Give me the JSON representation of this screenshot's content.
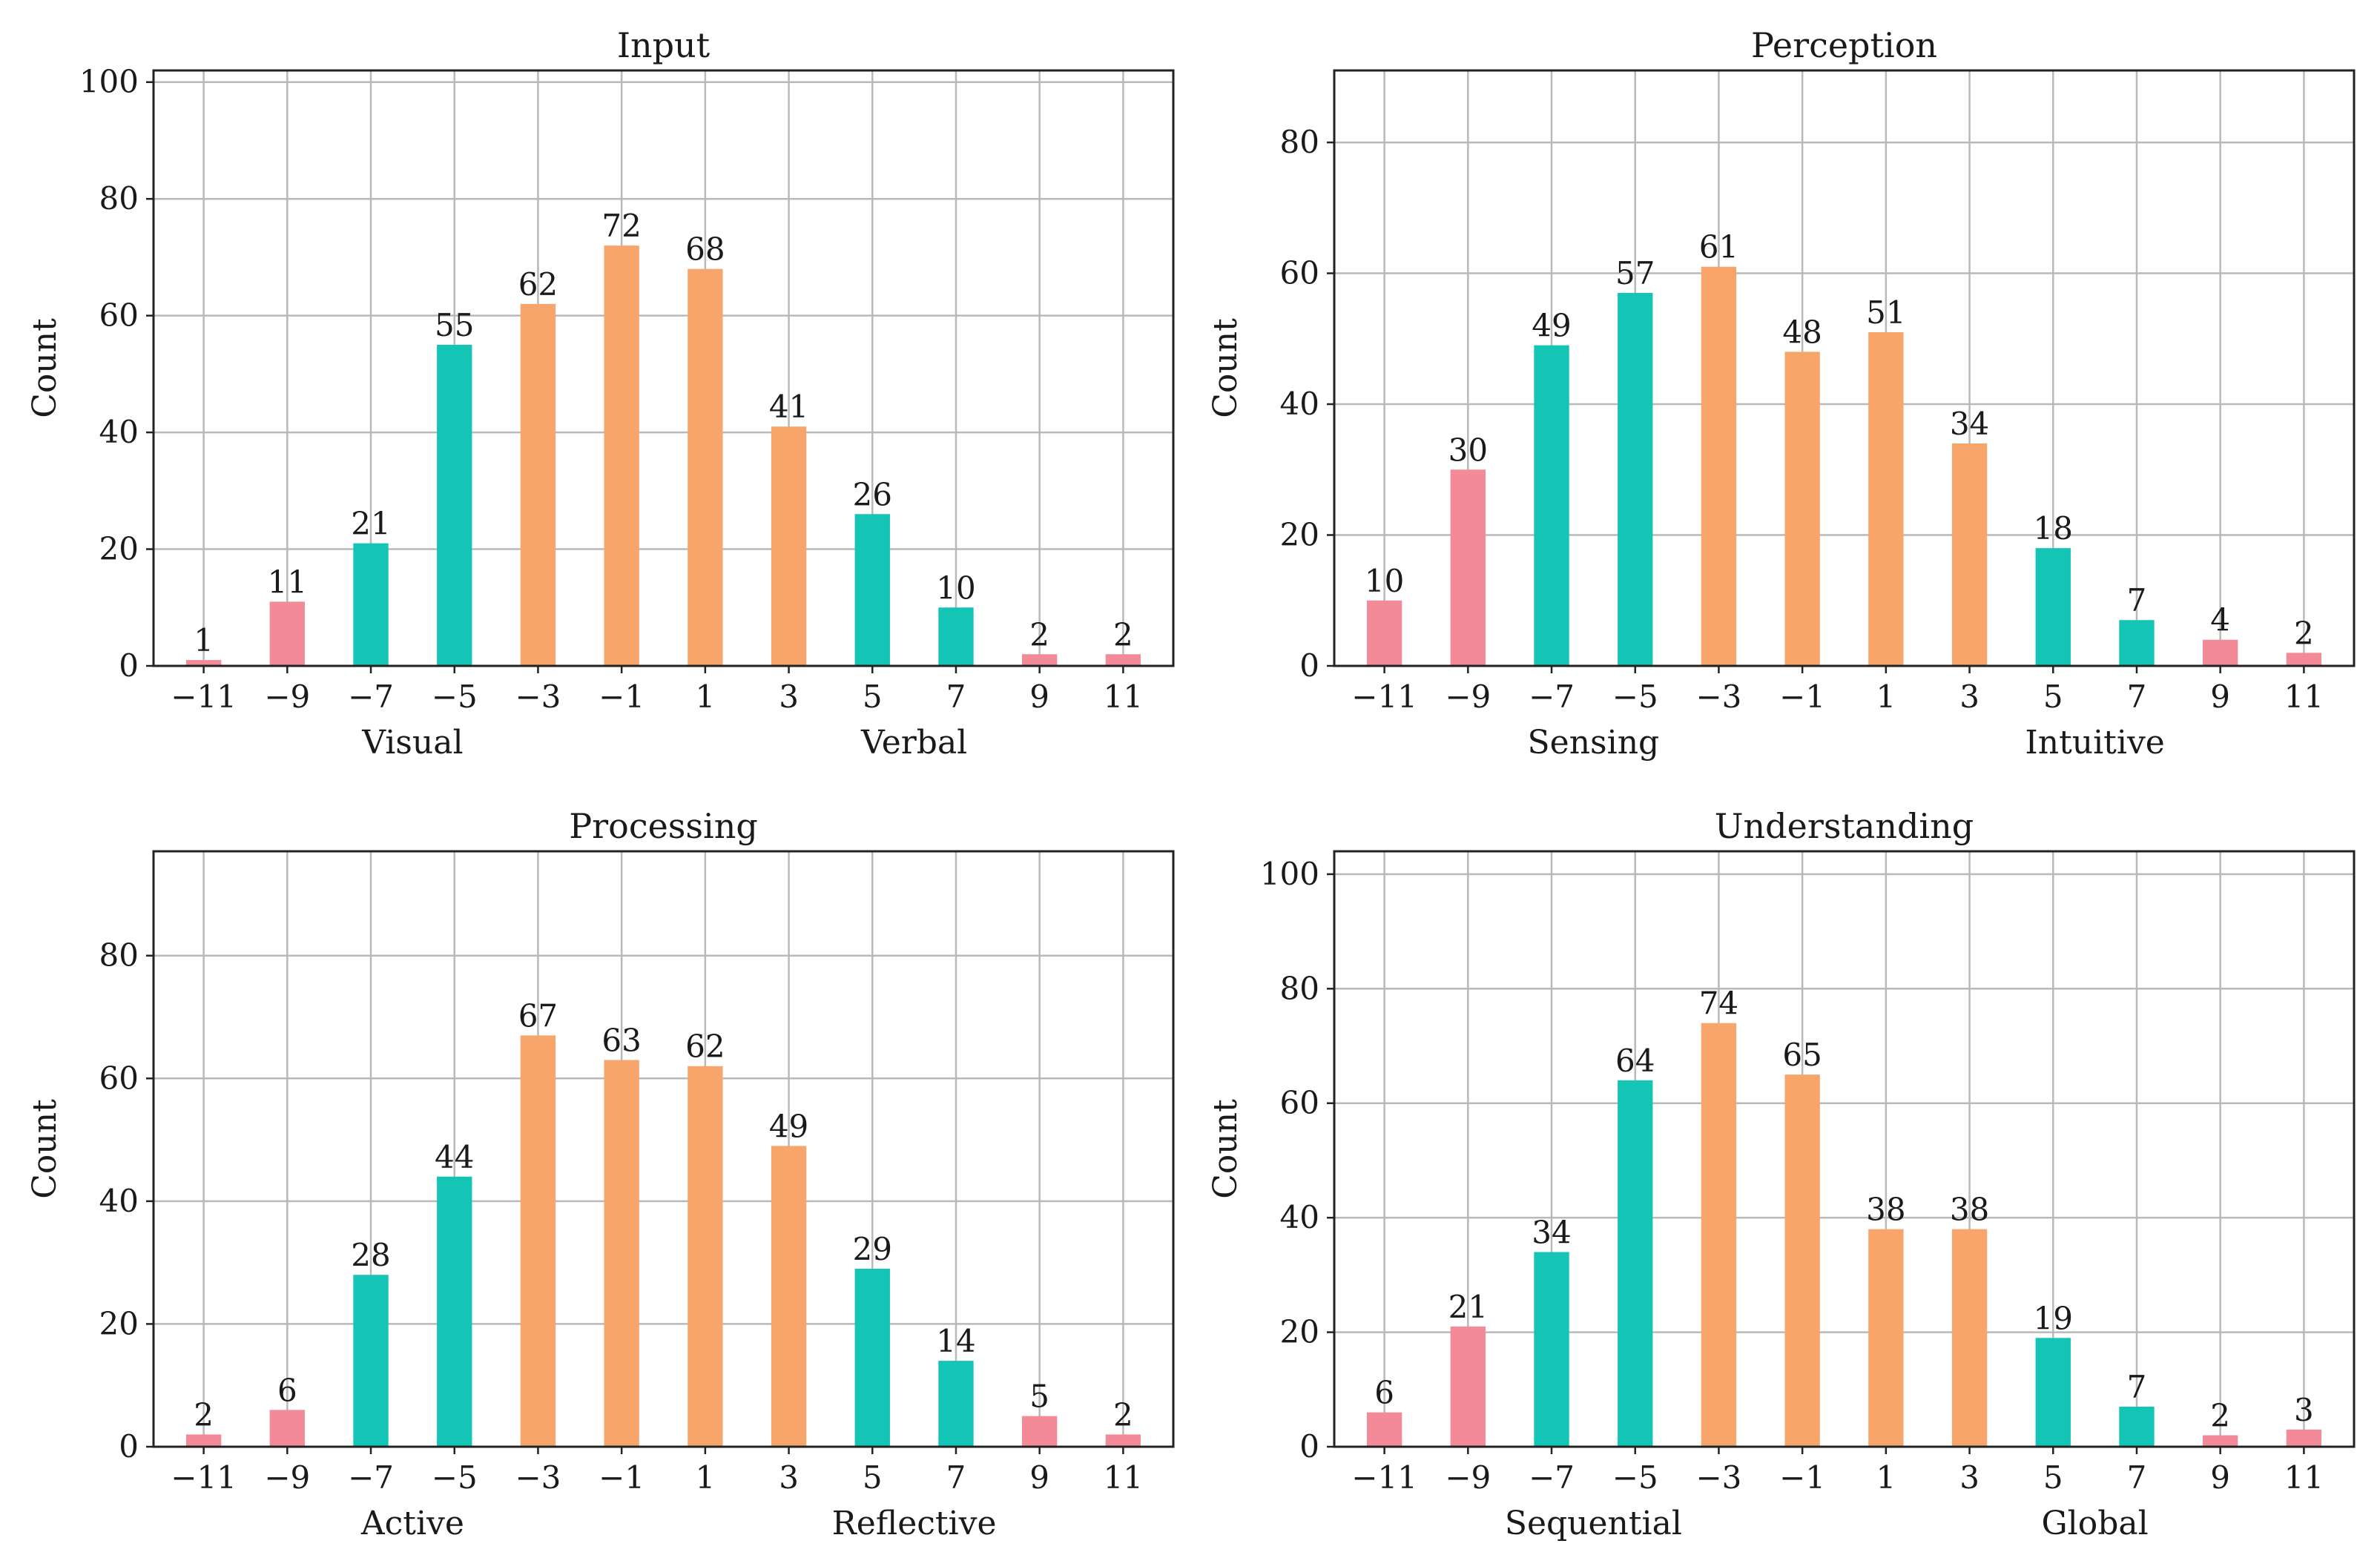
{
  "colors": {
    "pink": "#f28a97",
    "teal": "#14c4b4",
    "orange": "#f7a56a"
  },
  "chart_data": [
    {
      "type": "bar",
      "title": "Input",
      "ylabel": "Count",
      "xlabel_left": "Visual",
      "xlabel_right": "Verbal",
      "categories": [
        "−11",
        "−9",
        "−7",
        "−5",
        "−3",
        "−1",
        "1",
        "3",
        "5",
        "7",
        "9",
        "11"
      ],
      "x": [
        -11,
        -9,
        -7,
        -5,
        -3,
        -1,
        1,
        3,
        5,
        7,
        9,
        11
      ],
      "values": [
        1,
        11,
        21,
        55,
        62,
        72,
        68,
        41,
        26,
        10,
        2,
        2
      ],
      "bar_colors": [
        "pink",
        "pink",
        "teal",
        "teal",
        "orange",
        "orange",
        "orange",
        "orange",
        "teal",
        "teal",
        "pink",
        "pink"
      ],
      "yticks": [
        0,
        20,
        40,
        60,
        80,
        100
      ],
      "ylim": [
        0,
        102
      ],
      "grid": true
    },
    {
      "type": "bar",
      "title": "Perception",
      "ylabel": "Count",
      "xlabel_left": "Sensing",
      "xlabel_right": "Intuitive",
      "categories": [
        "−11",
        "−9",
        "−7",
        "−5",
        "−3",
        "−1",
        "1",
        "3",
        "5",
        "7",
        "9",
        "11"
      ],
      "x": [
        -11,
        -9,
        -7,
        -5,
        -3,
        -1,
        1,
        3,
        5,
        7,
        9,
        11
      ],
      "values": [
        10,
        30,
        49,
        57,
        61,
        48,
        51,
        34,
        18,
        7,
        4,
        2
      ],
      "bar_colors": [
        "pink",
        "pink",
        "teal",
        "teal",
        "orange",
        "orange",
        "orange",
        "orange",
        "teal",
        "teal",
        "pink",
        "pink"
      ],
      "yticks": [
        0,
        20,
        40,
        60,
        80
      ],
      "ylim": [
        0,
        91
      ],
      "grid": true
    },
    {
      "type": "bar",
      "title": "Processing",
      "ylabel": "Count",
      "xlabel_left": "Active",
      "xlabel_right": "Reflective",
      "categories": [
        "−11",
        "−9",
        "−7",
        "−5",
        "−3",
        "−1",
        "1",
        "3",
        "5",
        "7",
        "9",
        "11"
      ],
      "x": [
        -11,
        -9,
        -7,
        -5,
        -3,
        -1,
        1,
        3,
        5,
        7,
        9,
        11
      ],
      "values": [
        2,
        6,
        28,
        44,
        67,
        63,
        62,
        49,
        29,
        14,
        5,
        2
      ],
      "bar_colors": [
        "pink",
        "pink",
        "teal",
        "teal",
        "orange",
        "orange",
        "orange",
        "orange",
        "teal",
        "teal",
        "pink",
        "pink"
      ],
      "yticks": [
        0,
        20,
        40,
        60,
        80
      ],
      "ylim": [
        0,
        97
      ],
      "grid": true
    },
    {
      "type": "bar",
      "title": "Understanding",
      "ylabel": "Count",
      "xlabel_left": "Sequential",
      "xlabel_right": "Global",
      "categories": [
        "−11",
        "−9",
        "−7",
        "−5",
        "−3",
        "−1",
        "1",
        "3",
        "5",
        "7",
        "9",
        "11"
      ],
      "x": [
        -11,
        -9,
        -7,
        -5,
        -3,
        -1,
        1,
        3,
        5,
        7,
        9,
        11
      ],
      "values": [
        6,
        21,
        34,
        64,
        74,
        65,
        38,
        38,
        19,
        7,
        2,
        3
      ],
      "bar_colors": [
        "pink",
        "pink",
        "teal",
        "teal",
        "orange",
        "orange",
        "orange",
        "orange",
        "teal",
        "teal",
        "pink",
        "pink"
      ],
      "yticks": [
        0,
        20,
        40,
        60,
        80,
        100
      ],
      "ylim": [
        0,
        104
      ],
      "grid": true
    }
  ]
}
